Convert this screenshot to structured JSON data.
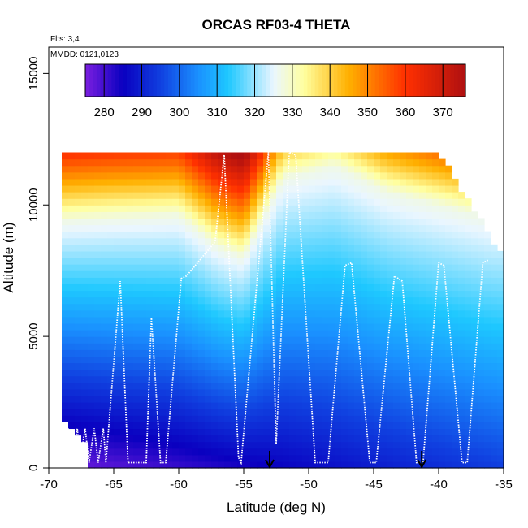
{
  "chart_data": {
    "type": "heatmap",
    "title": "ORCAS RF03-4 THETA",
    "xlabel": "Latitude (deg N)",
    "ylabel": "Altitude (m)",
    "xlim": [
      -70,
      -35
    ],
    "ylim": [
      0,
      16000
    ],
    "x_ticks": [
      -70,
      -65,
      -60,
      -55,
      -50,
      -45,
      -40,
      -35
    ],
    "x_tick_labels": [
      "-70",
      "-65",
      "-60",
      "-55",
      "-50",
      "-45",
      "-40",
      "-35"
    ],
    "y_ticks": [
      0,
      5000,
      10000,
      15000
    ],
    "y_tick_labels": [
      "0",
      "5000",
      "10000",
      "15000"
    ],
    "flights_note": "Flts: 3,4",
    "dates_note": "MMDD: 0121,0123",
    "colorbar": {
      "range": [
        275,
        376
      ],
      "ticks": [
        280,
        290,
        300,
        310,
        320,
        330,
        340,
        350,
        360,
        370
      ],
      "tick_labels": [
        "280",
        "290",
        "300",
        "310",
        "320",
        "330",
        "340",
        "350",
        "360",
        "370"
      ],
      "colors": [
        "#7b1fe0",
        "#0a00c0",
        "#1040e0",
        "#1a90ff",
        "#1ec8ff",
        "#eaf6ff",
        "#ffffa0",
        "#ffb000",
        "#ff3000",
        "#b01010"
      ],
      "color_stops": [
        275,
        285,
        295,
        305,
        313,
        325,
        333,
        345,
        360,
        376
      ]
    },
    "field": {
      "lat": [
        -69,
        -65,
        -60,
        -57,
        -55,
        -52,
        -48,
        -44,
        -40,
        -36
      ],
      "tropopause_alt": [
        9400,
        9500,
        9600,
        8400,
        8000,
        11000,
        11500,
        10500,
        10000,
        9500
      ]
    },
    "flight_track": {
      "lat": [
        -69,
        -68.5,
        -68.3,
        -67.8,
        -67.6,
        -67.2,
        -66.9,
        -66.5,
        -66.2,
        -65.8,
        -65.6,
        -64.5,
        -63.9,
        -62.5,
        -62.1,
        -61.4,
        -61.0,
        -59.8,
        -59.4,
        -57.2,
        -56.5,
        -55.4,
        -55.2,
        -53.1,
        -52.5,
        -51.5,
        -51.0,
        -49.5,
        -48.5,
        -47.2,
        -46.7,
        -45.3,
        -44.8,
        -43.4,
        -42.8,
        -41.7,
        -41.2,
        -40.0,
        -39.6,
        -38.2,
        -37.8,
        -36.6,
        -36.2
      ],
      "alt": [
        200,
        1500,
        200,
        1500,
        200,
        1500,
        200,
        1500,
        200,
        1500,
        200,
        7100,
        200,
        200,
        5700,
        200,
        200,
        7200,
        7300,
        8600,
        11900,
        400,
        200,
        12000,
        900,
        12000,
        11900,
        200,
        200,
        7700,
        7800,
        200,
        200,
        7300,
        7100,
        200,
        200,
        7800,
        7700,
        200,
        200,
        7800,
        7900
      ]
    },
    "dropsondes_lat": [
      -53,
      -41.3
    ],
    "annotations": []
  }
}
